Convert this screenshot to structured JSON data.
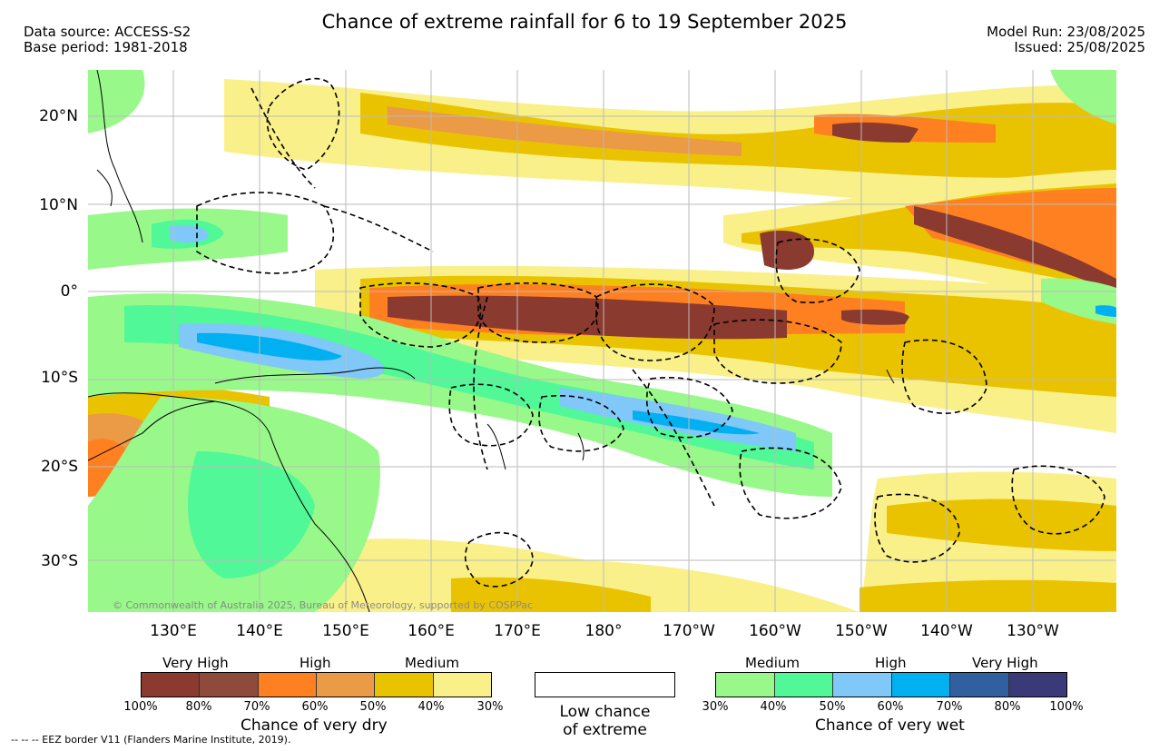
{
  "title": "Chance of extreme rainfall for 6 to 19 September 2025",
  "data_source": "Data source: ACCESS-S2",
  "base_period": "Base period: 1981-2018",
  "model_run": "Model Run: 23/08/2025",
  "issued": "Issued: 25/08/2025",
  "copyright": "© Commonwealth of Australia 2025, Bureau of Meteorology, supported by COSPPac",
  "lat_labels": [
    "20°N",
    "10°N",
    "0°",
    "10°S",
    "20°S",
    "30°S"
  ],
  "lon_labels": [
    "130°E",
    "140°E",
    "150°E",
    "160°E",
    "170°E",
    "180°",
    "170°W",
    "160°W",
    "150°W",
    "140°W",
    "130°W"
  ],
  "legend_dry": {
    "categories": [
      "Very High",
      "High",
      "Medium"
    ],
    "ticks": [
      "100%",
      "80%",
      "70%",
      "60%",
      "50%",
      "40%",
      "30%"
    ],
    "colors": [
      "#8b3a2f",
      "#8e4a3a",
      "#ff8020",
      "#eb9a45",
      "#eac300",
      "#faf08a"
    ],
    "caption": "Chance of very dry"
  },
  "legend_low": {
    "line1": "Low chance",
    "line2": "of extreme"
  },
  "legend_wet": {
    "categories": [
      "Medium",
      "High",
      "Very High"
    ],
    "ticks": [
      "30%",
      "40%",
      "50%",
      "60%",
      "70%",
      "80%",
      "100%"
    ],
    "colors": [
      "#98f88a",
      "#50f898",
      "#80c8f8",
      "#00b0f0",
      "#3060a0",
      "#3a3a78"
    ],
    "caption": "Chance of very wet"
  },
  "footer": "--  --  -- EEZ border V11 (Flanders Marine Institute, 2019)."
}
